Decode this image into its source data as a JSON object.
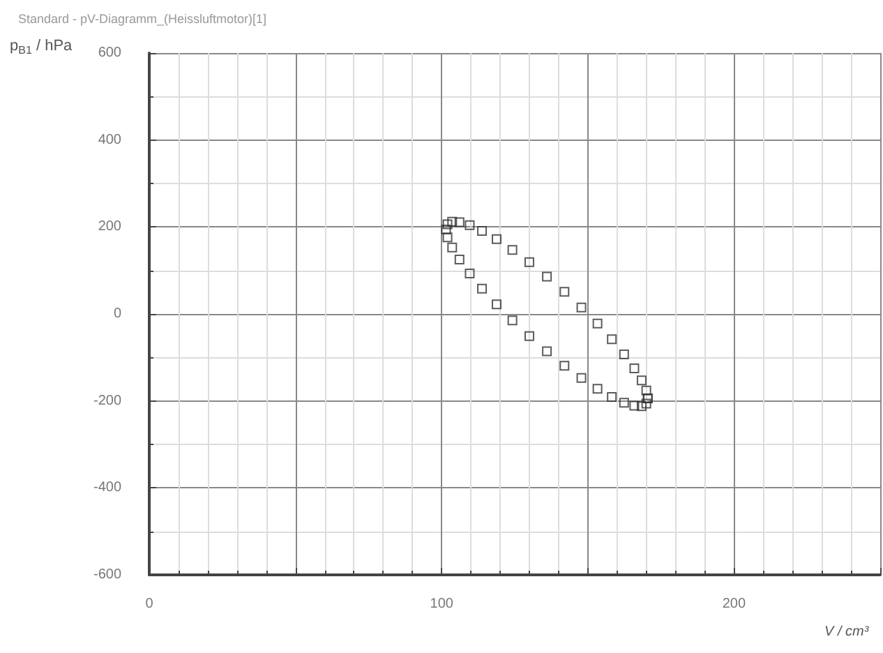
{
  "chart_data": {
    "type": "scatter",
    "title": "Standard - pV-Diagramm_(Heissluftmotor)[1]",
    "xlabel": "V / cm³",
    "ylabel": "p$_{B1}$ / hPa",
    "marker": "square",
    "grid": true,
    "xlim": [
      0,
      250
    ],
    "xticks": [
      0,
      {
        "value": 50,
        "label": null
      },
      100,
      {
        "value": 150,
        "label": null
      },
      200,
      {
        "value": 250,
        "label": null
      }
    ],
    "ylim": [
      -600,
      600
    ],
    "yticks": [
      -600,
      -400,
      -200,
      0,
      200,
      400,
      600
    ],
    "series": [
      {
        "color": "#333333",
        "x": [
          170.5,
          170.0,
          168.4,
          165.9,
          162.4,
          158.2,
          153.3,
          147.8,
          142.0,
          136.0,
          130.0,
          124.2,
          118.8,
          113.8,
          109.6,
          106.1,
          103.6,
          102.0,
          101.5,
          102.0,
          103.6,
          106.1,
          109.6,
          113.8,
          118.8,
          124.2,
          130.0,
          136.0,
          142.0,
          147.8,
          153.3,
          158.2,
          162.4,
          165.9,
          168.4,
          170.0,
          170.5
        ],
        "values": [
          -194,
          -206,
          -212,
          -211,
          -204,
          -191,
          -172,
          -147,
          -119,
          -86,
          -51,
          -15,
          22,
          58,
          93,
          125,
          153,
          176,
          194,
          206,
          212,
          211,
          204,
          191,
          172,
          147,
          119,
          86,
          51,
          15,
          -22,
          -58,
          -93,
          -125,
          -153,
          -176,
          -194
        ]
      }
    ]
  }
}
